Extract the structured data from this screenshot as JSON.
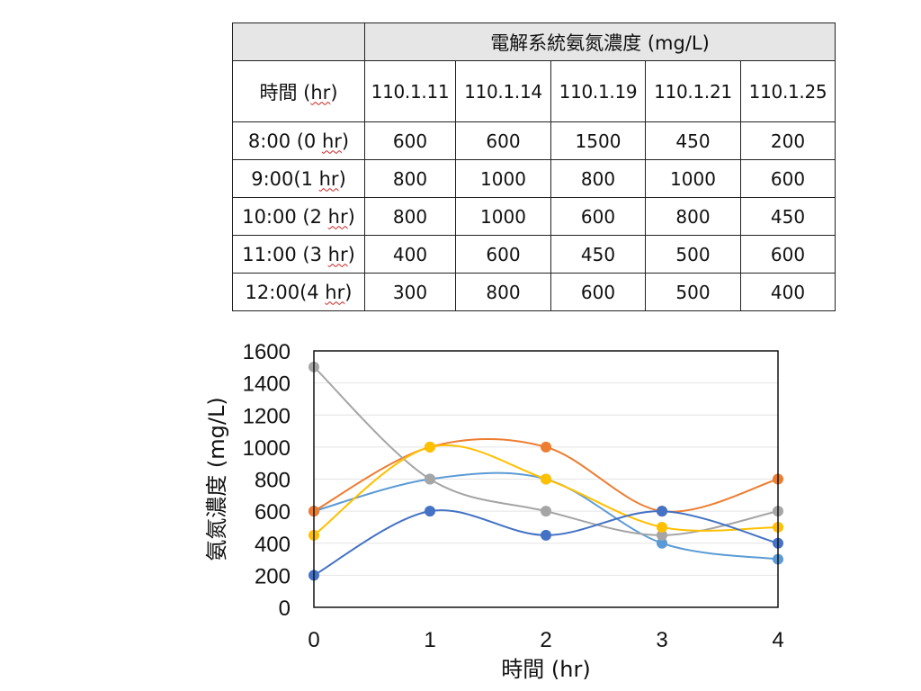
{
  "table": {
    "title": "電解系統氨氮濃度 (mg/L)",
    "time_header": "時間 (hr)",
    "dates": [
      "110.1.11",
      "110.1.14",
      "110.1.19",
      "110.1.21",
      "110.1.25"
    ],
    "rows": [
      {
        "time": "8:00 (0 hr)",
        "values": [
          "600",
          "600",
          "1500",
          "450",
          "200"
        ]
      },
      {
        "time": "9:00(1 hr)",
        "values": [
          "800",
          "1000",
          "800",
          "1000",
          "600"
        ]
      },
      {
        "time": "10:00 (2 hr)",
        "values": [
          "800",
          "1000",
          "600",
          "800",
          "450"
        ]
      },
      {
        "time": "11:00 (3 hr)",
        "values": [
          "400",
          "600",
          "450",
          "500",
          "600"
        ]
      },
      {
        "time": "12:00(4 hr)",
        "values": [
          "300",
          "800",
          "600",
          "500",
          "400"
        ]
      }
    ]
  },
  "chart_data": {
    "type": "line",
    "smooth": true,
    "title": "",
    "xlabel": "時間 (hr)",
    "ylabel": "氨氮濃度 (mg/L)",
    "x": [
      0,
      1,
      2,
      3,
      4
    ],
    "x_tick_labels": [
      "0",
      "1",
      "2",
      "3",
      "4"
    ],
    "ylim": [
      0,
      1600
    ],
    "y_ticks": [
      0,
      200,
      400,
      600,
      800,
      1000,
      1200,
      1400,
      1600
    ],
    "grid": true,
    "legend": "none",
    "series": [
      {
        "name": "110.1.11",
        "color": "#5b9bd5",
        "values": [
          600,
          800,
          800,
          400,
          300
        ]
      },
      {
        "name": "110.1.14",
        "color": "#ed7d31",
        "values": [
          600,
          1000,
          1000,
          600,
          800
        ]
      },
      {
        "name": "110.1.19",
        "color": "#a5a5a5",
        "values": [
          1500,
          800,
          600,
          450,
          600
        ]
      },
      {
        "name": "110.1.21",
        "color": "#ffc000",
        "values": [
          450,
          1000,
          800,
          500,
          500
        ]
      },
      {
        "name": "110.1.25",
        "color": "#4472c4",
        "values": [
          200,
          600,
          450,
          600,
          400
        ]
      }
    ]
  }
}
